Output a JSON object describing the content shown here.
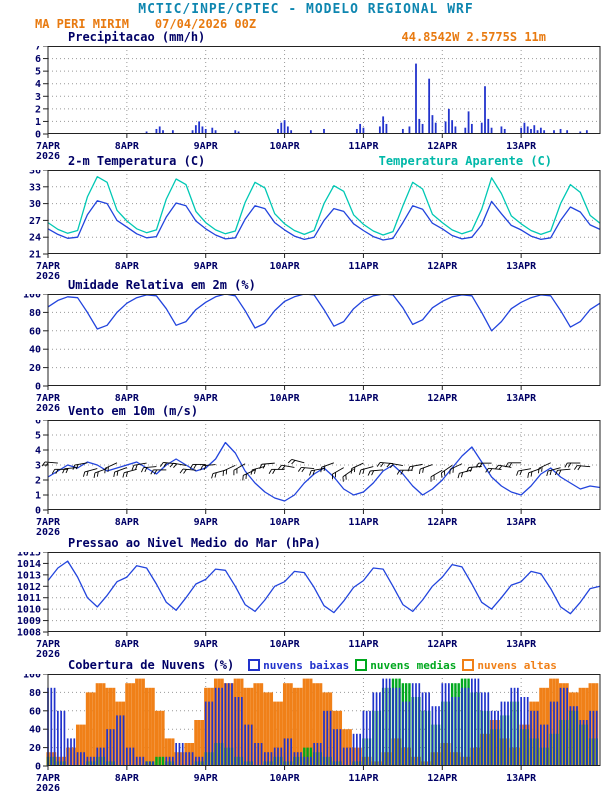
{
  "header": {
    "title": "MCTIC/INPE/CPTEC - MODELO REGIONAL WRF",
    "station": "MA PERI MIRIM",
    "run": "07/04/2026 00Z",
    "coords": "44.8542W 2.5775S 11m"
  },
  "colors": {
    "header_teal": "#0e86b0",
    "orange": "#e87a10",
    "axis": "#000066",
    "line_blue": "#2244dd",
    "line_cyan": "#00c8b4",
    "bar_blue": "#2233cc",
    "cloud_green": "#00a81e",
    "cloud_orange": "#f08018"
  },
  "chart_data": {
    "type": "bar",
    "subtype": "meteogram-multi-panel",
    "x": {
      "total_hours": 168,
      "hours": [
        0,
        24,
        48,
        72,
        96,
        120,
        144
      ],
      "labels": [
        "7APR",
        "8APR",
        "9APR",
        "10APR",
        "11APR",
        "12APR",
        "13APR"
      ],
      "year": "2026"
    },
    "panels": [
      {
        "id": "precip",
        "title": "Precipitacao (mm/h)",
        "type": "bar",
        "ylim": [
          0,
          7
        ],
        "yticks": [
          0,
          1,
          2,
          3,
          4,
          5,
          6,
          7
        ],
        "step_hours": 1,
        "series": [
          {
            "name": "precipitacao",
            "color": "#2233cc",
            "values": [
              0,
              0,
              0,
              0,
              0,
              0,
              0,
              0,
              0,
              0,
              0,
              0,
              0,
              0,
              0,
              0,
              0,
              0,
              0,
              0,
              0,
              0,
              0,
              0,
              0,
              0,
              0,
              0,
              0,
              0,
              0.2,
              0,
              0,
              0.4,
              0.6,
              0.3,
              0,
              0,
              0.3,
              0,
              0,
              0,
              0,
              0,
              0.3,
              0.7,
              1.0,
              0.6,
              0.4,
              0,
              0.5,
              0.3,
              0,
              0,
              0,
              0,
              0,
              0.3,
              0.2,
              0,
              0,
              0,
              0,
              0,
              0,
              0,
              0,
              0,
              0,
              0,
              0.4,
              0.9,
              1.1,
              0.6,
              0.3,
              0,
              0,
              0,
              0,
              0,
              0.3,
              0,
              0,
              0,
              0.4,
              0,
              0,
              0,
              0,
              0,
              0,
              0,
              0,
              0,
              0.4,
              0.8,
              0.5,
              0,
              0,
              0,
              0,
              0.6,
              1.4,
              0.8,
              0,
              0,
              0,
              0,
              0.4,
              0,
              0.6,
              0,
              5.6,
              1.2,
              0.8,
              0,
              4.4,
              1.5,
              0.9,
              0,
              0,
              1.0,
              2.0,
              1.1,
              0.6,
              0,
              0,
              0.5,
              1.8,
              0.8,
              0,
              0,
              0.9,
              3.8,
              1.2,
              0.5,
              0,
              0,
              0.6,
              0.4,
              0,
              0,
              0,
              0,
              0.5,
              0.9,
              0.6,
              0.4,
              0.7,
              0.3,
              0.5,
              0.3,
              0,
              0,
              0.3,
              0,
              0.4,
              0,
              0.3,
              0,
              0,
              0,
              0.2,
              0,
              0.3,
              0,
              0,
              0
            ]
          }
        ]
      },
      {
        "id": "temp",
        "title": "2-m Temperatura (C)",
        "right_title": "Temperatura Aparente (C)",
        "type": "line",
        "ylim": [
          21,
          36
        ],
        "yticks": [
          21,
          24,
          27,
          30,
          33,
          36
        ],
        "step_hours": 3,
        "series": [
          {
            "name": "temperatura-2m",
            "color": "#2244dd",
            "values": [
              25.5,
              24.5,
              23.8,
              24.0,
              28.0,
              30.5,
              30.0,
              27.0,
              25.8,
              24.6,
              23.9,
              24.1,
              27.6,
              30.1,
              29.6,
              26.9,
              25.5,
              24.4,
              23.7,
              23.9,
              27.2,
              29.6,
              29.1,
              26.6,
              25.3,
              24.2,
              23.6,
              24.0,
              27.0,
              29.1,
              28.6,
              26.4,
              25.2,
              24.1,
              23.5,
              23.8,
              26.6,
              29.6,
              29.0,
              26.5,
              25.5,
              24.3,
              23.7,
              24.0,
              26.2,
              30.4,
              28.2,
              26.1,
              25.3,
              24.2,
              23.6,
              23.9,
              27.0,
              29.4,
              28.5,
              26.2,
              25.4
            ]
          },
          {
            "name": "temperatura-aparente",
            "color": "#00c8b4",
            "values": [
              26.6,
              25.4,
              24.7,
              25.2,
              31.2,
              34.8,
              33.8,
              28.8,
              26.9,
              25.5,
              24.8,
              25.3,
              30.8,
              34.4,
              33.4,
              28.6,
              26.6,
              25.3,
              24.6,
              25.1,
              30.2,
              33.8,
              32.8,
              28.2,
              26.4,
              25.2,
              24.5,
              25.2,
              30.0,
              33.2,
              32.2,
              28.0,
              26.3,
              25.1,
              24.4,
              25.0,
              29.6,
              33.8,
              32.6,
              28.1,
              26.6,
              25.3,
              24.6,
              25.2,
              29.0,
              34.6,
              31.8,
              27.8,
              26.4,
              25.2,
              24.5,
              25.1,
              30.0,
              33.4,
              32.0,
              27.9,
              26.5
            ]
          }
        ]
      },
      {
        "id": "rh",
        "title": "Umidade Relativa em 2m (%)",
        "type": "line",
        "ylim": [
          0,
          100
        ],
        "yticks": [
          0,
          20,
          40,
          60,
          80,
          100
        ],
        "step_hours": 3,
        "series": [
          {
            "name": "umidade-relativa-2m",
            "color": "#2244dd",
            "values": [
              86,
              93,
              97,
              96,
              80,
              62,
              66,
              80,
              90,
              96,
              99,
              98,
              84,
              66,
              70,
              83,
              91,
              97,
              100,
              98,
              82,
              63,
              68,
              82,
              92,
              97,
              100,
              99,
              83,
              65,
              70,
              84,
              93,
              98,
              100,
              99,
              85,
              67,
              72,
              85,
              92,
              97,
              99,
              98,
              80,
              60,
              70,
              84,
              91,
              96,
              99,
              98,
              82,
              64,
              70,
              83,
              90
            ]
          }
        ]
      },
      {
        "id": "wind",
        "title": "Vento em 10m (m/s)",
        "type": "wind",
        "ylim": [
          0,
          6
        ],
        "yticks": [
          0,
          1,
          2,
          3,
          4,
          5,
          6
        ],
        "step_hours": 3,
        "series": [
          {
            "name": "vento-10m",
            "color": "#2244dd",
            "values": [
              2.2,
              2.6,
              3.0,
              2.8,
              3.2,
              3.0,
              2.6,
              2.8,
              3.0,
              3.2,
              2.8,
              2.4,
              3.0,
              3.4,
              3.0,
              2.6,
              2.8,
              3.4,
              4.5,
              3.8,
              2.6,
              1.8,
              1.2,
              0.8,
              0.6,
              1.0,
              1.8,
              2.4,
              2.8,
              2.2,
              1.4,
              1.0,
              1.2,
              1.8,
              2.6,
              3.0,
              2.4,
              1.6,
              1.0,
              1.4,
              2.0,
              2.8,
              3.6,
              4.2,
              3.2,
              2.2,
              1.6,
              1.2,
              1.0,
              1.6,
              2.4,
              2.8,
              2.2,
              1.8,
              1.4,
              1.6,
              1.5
            ]
          }
        ],
        "barbs": {
          "level": 2.9,
          "color": "#000000",
          "directions": [
            70,
            75,
            80,
            85,
            90,
            95,
            100,
            105,
            100,
            95,
            90,
            85,
            80,
            75,
            70,
            75,
            80,
            85,
            95,
            105,
            110,
            105,
            95,
            85,
            80,
            70,
            65,
            75,
            90,
            100,
            110,
            115,
            105,
            95,
            85,
            75,
            70,
            80,
            90,
            100,
            110,
            115,
            105,
            95,
            85,
            80,
            75,
            70,
            80,
            90,
            100,
            105,
            95,
            85,
            80,
            75
          ]
        }
      },
      {
        "id": "pressure",
        "title": "Pressao ao Nivel Medio do Mar (hPa)",
        "type": "line",
        "ylim": [
          1008,
          1015
        ],
        "yticks": [
          1008,
          1009,
          1010,
          1011,
          1012,
          1013,
          1014,
          1015
        ],
        "step_hours": 3,
        "series": [
          {
            "name": "pressao-nivel-mar",
            "color": "#2244dd",
            "values": [
              1012.5,
              1013.6,
              1014.2,
              1012.8,
              1011.0,
              1010.2,
              1011.2,
              1012.4,
              1012.8,
              1013.8,
              1013.6,
              1012.2,
              1010.6,
              1009.9,
              1011.0,
              1012.2,
              1012.6,
              1013.5,
              1013.4,
              1012.0,
              1010.4,
              1009.8,
              1010.8,
              1012.0,
              1012.4,
              1013.3,
              1013.2,
              1011.9,
              1010.3,
              1009.7,
              1010.7,
              1011.9,
              1012.5,
              1013.6,
              1013.5,
              1012.0,
              1010.4,
              1009.8,
              1010.8,
              1012.0,
              1012.8,
              1013.9,
              1013.7,
              1012.2,
              1010.6,
              1010.0,
              1011.0,
              1012.1,
              1012.4,
              1013.3,
              1013.1,
              1011.8,
              1010.2,
              1009.6,
              1010.6,
              1011.8,
              1012.0
            ]
          }
        ]
      },
      {
        "id": "clouds",
        "title": "Cobertura de Nuvens (%)",
        "type": "cloud-bar",
        "ylim": [
          0,
          100
        ],
        "yticks": [
          0,
          20,
          40,
          60,
          80,
          100
        ],
        "step_hours": 3,
        "legend": [
          {
            "label": "nuvens baixas",
            "color": "#2233cc"
          },
          {
            "label": "nuvens medias",
            "color": "#00a81e"
          },
          {
            "label": "nuvens altas",
            "color": "#f08018"
          }
        ],
        "series": [
          {
            "name": "nuvens-baixas",
            "color": "#2233cc",
            "values": [
              85,
              60,
              30,
              15,
              10,
              20,
              40,
              55,
              20,
              10,
              5,
              0,
              10,
              25,
              15,
              10,
              70,
              85,
              90,
              75,
              45,
              25,
              15,
              20,
              30,
              15,
              10,
              25,
              60,
              40,
              20,
              35,
              60,
              80,
              95,
              85,
              70,
              90,
              80,
              65,
              90,
              75,
              85,
              95,
              80,
              60,
              70,
              85,
              75,
              60,
              45,
              70,
              85,
              65,
              50,
              60
            ]
          },
          {
            "name": "nuvens-medias",
            "color": "#00a81e",
            "values": [
              10,
              5,
              0,
              0,
              5,
              10,
              5,
              0,
              0,
              0,
              5,
              10,
              5,
              0,
              0,
              5,
              15,
              25,
              20,
              10,
              5,
              0,
              5,
              10,
              5,
              10,
              20,
              15,
              10,
              5,
              0,
              5,
              30,
              60,
              85,
              95,
              90,
              75,
              60,
              45,
              70,
              90,
              95,
              80,
              60,
              40,
              55,
              70,
              40,
              30,
              20,
              35,
              50,
              60,
              45,
              30
            ]
          },
          {
            "name": "nuvens-altas",
            "color": "#f08018",
            "values": [
              15,
              10,
              20,
              45,
              80,
              90,
              85,
              70,
              90,
              95,
              85,
              60,
              30,
              15,
              25,
              50,
              85,
              95,
              90,
              95,
              85,
              90,
              80,
              70,
              90,
              85,
              95,
              90,
              80,
              60,
              40,
              20,
              10,
              5,
              15,
              30,
              20,
              10,
              5,
              15,
              25,
              15,
              10,
              20,
              35,
              50,
              30,
              20,
              45,
              70,
              85,
              95,
              90,
              80,
              85,
              90
            ]
          }
        ]
      }
    ]
  }
}
